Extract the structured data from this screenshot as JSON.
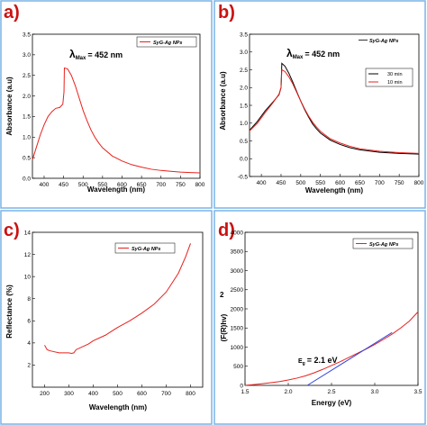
{
  "panels": [
    {
      "letter": "a)",
      "annotation_main": "λ",
      "annotation_sub": "Max",
      "annotation_rest": "= 452 nm",
      "chart_data": {
        "type": "line",
        "xlabel": "Wavelength (nm)",
        "ylabel": "Absorbance (a.u)",
        "xlim": [
          370,
          800
        ],
        "ylim": [
          0,
          3.5
        ],
        "xticks": [
          400,
          450,
          500,
          550,
          600,
          650,
          700,
          750,
          800
        ],
        "yticks": [
          0.0,
          0.5,
          1.0,
          1.5,
          2.0,
          2.5,
          3.0,
          3.5
        ],
        "ytick_labels": [
          "0.0",
          "0.5",
          "1.0",
          "1.5",
          "2.0",
          "2.5",
          "3.0",
          "3.5"
        ],
        "legend_position": "top-right",
        "series": [
          {
            "name": "SyG-Ag NPs",
            "color": "#e8201c",
            "x": [
              370,
              380,
              390,
              400,
              410,
              420,
              430,
              440,
              448,
              451,
              452,
              460,
              470,
              480,
              490,
              500,
              510,
              520,
              530,
              540,
              550,
              575,
              600,
              625,
              650,
              675,
              700,
              725,
              750,
              775,
              800
            ],
            "y": [
              0.45,
              0.75,
              1.05,
              1.3,
              1.5,
              1.62,
              1.7,
              1.72,
              1.8,
              2.1,
              2.68,
              2.66,
              2.5,
              2.25,
              1.95,
              1.65,
              1.4,
              1.18,
              1.0,
              0.86,
              0.74,
              0.54,
              0.42,
              0.33,
              0.27,
              0.22,
              0.19,
              0.17,
              0.15,
              0.14,
              0.13
            ]
          }
        ]
      }
    },
    {
      "letter": "b)",
      "annotation_main": "λ",
      "annotation_sub": "Max",
      "annotation_rest": "= 452 nm",
      "chart_data": {
        "type": "line",
        "xlabel": "Wavelength (nm)",
        "ylabel": "Absorbance (a.u)",
        "xlim": [
          370,
          800
        ],
        "ylim": [
          -0.5,
          3.5
        ],
        "xticks": [
          400,
          450,
          500,
          550,
          600,
          650,
          700,
          750,
          800
        ],
        "yticks": [
          -0.5,
          0.0,
          0.5,
          1.0,
          1.5,
          2.0,
          2.5,
          3.0,
          3.5
        ],
        "ytick_labels": [
          "-0.5",
          "0.0",
          "0.5",
          "1.0",
          "1.5",
          "2.0",
          "2.5",
          "3.0",
          "3.5"
        ],
        "legend_position": "top-right",
        "legend_title": "SyG-Ag NPs",
        "series": [
          {
            "name": "30 min",
            "color": "#000000",
            "x": [
              370,
              390,
              410,
              430,
              445,
              450,
              452,
              460,
              470,
              480,
              490,
              500,
              510,
              520,
              530,
              540,
              550,
              575,
              600,
              625,
              650,
              700,
              750,
              800
            ],
            "y": [
              0.8,
              1.05,
              1.35,
              1.6,
              1.8,
              2.0,
              2.68,
              2.6,
              2.4,
              2.15,
              1.88,
              1.62,
              1.38,
              1.17,
              0.98,
              0.84,
              0.72,
              0.52,
              0.4,
              0.31,
              0.25,
              0.18,
              0.15,
              0.13
            ]
          },
          {
            "name": "10 min",
            "color": "#e8201c",
            "x": [
              370,
              390,
              410,
              430,
              445,
              450,
              452,
              460,
              470,
              480,
              490,
              500,
              510,
              520,
              530,
              540,
              550,
              575,
              600,
              625,
              650,
              700,
              750,
              800
            ],
            "y": [
              0.78,
              1.0,
              1.3,
              1.58,
              1.82,
              2.0,
              2.5,
              2.45,
              2.3,
              2.1,
              1.86,
              1.62,
              1.4,
              1.2,
              1.03,
              0.89,
              0.77,
              0.56,
              0.44,
              0.35,
              0.28,
              0.21,
              0.17,
              0.15
            ]
          }
        ]
      }
    },
    {
      "letter": "c)",
      "chart_data": {
        "type": "line",
        "xlabel": "Wavelength (nm)",
        "ylabel": "Reflectance (%)",
        "xlim": [
          150,
          850
        ],
        "ylim": [
          0,
          14
        ],
        "xticks": [
          200,
          300,
          400,
          500,
          600,
          700,
          800
        ],
        "yticks": [
          2,
          4,
          6,
          8,
          10,
          12,
          14
        ],
        "ytick_labels": [
          "2",
          "4",
          "6",
          "8",
          "10",
          "12",
          "14"
        ],
        "legend_position": "top-right",
        "series": [
          {
            "name": "SyG-Ag NPs",
            "color": "#e8201c",
            "x": [
              200,
              210,
              220,
              240,
              260,
              280,
              300,
              310,
              320,
              330,
              350,
              380,
              400,
              450,
              500,
              550,
              600,
              650,
              700,
              750,
              780,
              800
            ],
            "y": [
              3.8,
              3.4,
              3.3,
              3.2,
              3.1,
              3.1,
              3.1,
              3.05,
              3.1,
              3.4,
              3.6,
              3.9,
              4.2,
              4.7,
              5.4,
              6.0,
              6.7,
              7.5,
              8.6,
              10.3,
              11.8,
              13.0
            ]
          }
        ]
      }
    },
    {
      "letter": "d)",
      "annotation_main": "E",
      "annotation_sub": "g",
      "annotation_rest": "= 2.1 eV",
      "ylabel_super": "2",
      "chart_data": {
        "type": "line",
        "xlabel": "Energy (eV)",
        "ylabel": "(F(R)hv)",
        "xlim": [
          1.5,
          3.5
        ],
        "ylim": [
          0,
          4000
        ],
        "xticks": [
          1.5,
          2.0,
          2.5,
          3.0,
          3.5
        ],
        "yticks": [
          0,
          500,
          1000,
          1500,
          2000,
          2500,
          3000,
          3500,
          4000
        ],
        "ytick_labels": [
          "0",
          "500",
          "1000",
          "1500",
          "2000",
          "2500",
          "3000",
          "3500",
          "4000"
        ],
        "xtick_labels": [
          "1.5",
          "2.0",
          "2.5",
          "3.0",
          "3.5"
        ],
        "legend_position": "top-right",
        "series": [
          {
            "name": "SyG-Ag NPs",
            "color": "#e8201c",
            "x": [
              1.5,
              1.6,
              1.7,
              1.8,
              1.9,
              2.0,
              2.1,
              2.2,
              2.3,
              2.4,
              2.5,
              2.6,
              2.7,
              2.8,
              2.9,
              3.0,
              3.1,
              3.2,
              3.3,
              3.4,
              3.5
            ],
            "y": [
              0,
              20,
              45,
              70,
              100,
              140,
              190,
              250,
              330,
              420,
              520,
              620,
              730,
              840,
              950,
              1070,
              1200,
              1340,
              1500,
              1680,
              1920
            ]
          },
          {
            "name": "",
            "color": "#3344dd",
            "x": [
              2.22,
              3.2
            ],
            "y": [
              0,
              1380
            ]
          }
        ]
      }
    }
  ]
}
